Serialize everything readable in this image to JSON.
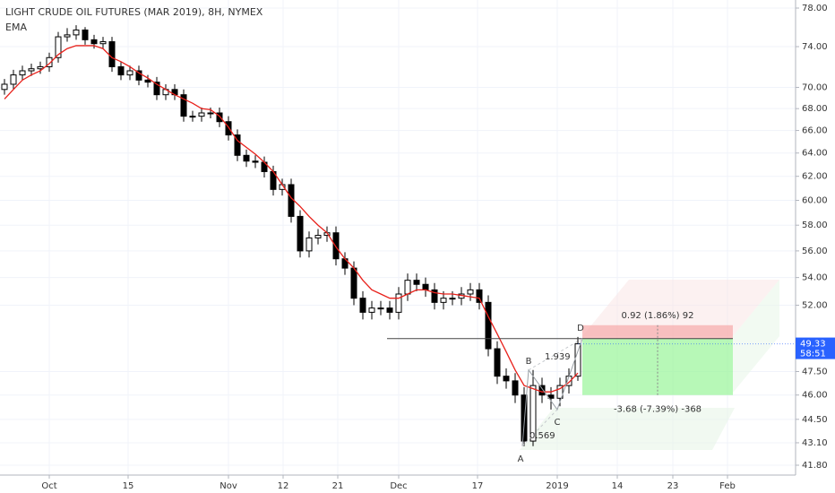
{
  "chart_data": {
    "type": "candlestick",
    "title": "LIGHT CRUDE OIL FUTURES (MAR 2019), 8H, NYMEX",
    "indicator": "EMA",
    "log": true,
    "ylim": [
      41.8,
      78
    ],
    "yticks": [
      {
        "value": 78,
        "label": "78.00"
      },
      {
        "value": 74,
        "label": "74.00"
      },
      {
        "value": 70,
        "label": "70.00"
      },
      {
        "value": 68,
        "label": "68.00"
      },
      {
        "value": 66,
        "label": "66.00"
      },
      {
        "value": 64,
        "label": "64.00"
      },
      {
        "value": 62,
        "label": "62.00"
      },
      {
        "value": 60,
        "label": "60.00"
      },
      {
        "value": 58,
        "label": "58.00"
      },
      {
        "value": 56,
        "label": "56.00"
      },
      {
        "value": 54,
        "label": "54.00"
      },
      {
        "value": 52,
        "label": "52.00"
      },
      {
        "value": 47.5,
        "label": "47.50"
      },
      {
        "value": 46,
        "label": "46.00"
      },
      {
        "value": 44.5,
        "label": "44.50"
      },
      {
        "value": 43.1,
        "label": "43.10"
      },
      {
        "value": 41.8,
        "label": "41.80"
      }
    ],
    "xticks": [
      {
        "value": 5,
        "label": "Oct"
      },
      {
        "value": 13.8,
        "label": "15"
      },
      {
        "value": 25,
        "label": "Nov"
      },
      {
        "value": 31.1,
        "label": "12"
      },
      {
        "value": 37.2,
        "label": "21"
      },
      {
        "value": 44,
        "label": "Dec"
      },
      {
        "value": 52.8,
        "label": "17"
      },
      {
        "value": 61.7,
        "label": "2019"
      },
      {
        "value": 68.4,
        "label": "14"
      },
      {
        "value": 74.6,
        "label": "23"
      },
      {
        "value": 80.7,
        "label": "Feb"
      }
    ],
    "up_color": "#ffffff",
    "down_color": "#000000",
    "ema_color": "#e8201a",
    "open": [
      69.8,
      70.3,
      71.2,
      71.6,
      71.8,
      72.0,
      72.9,
      75.0,
      75.2,
      75.7,
      74.7,
      74.3,
      74.5,
      72.0,
      71.2,
      71.6,
      70.7,
      70.5,
      69.3,
      69.8,
      69.3,
      67.3,
      67.3,
      67.6,
      67.6,
      66.8,
      65.6,
      63.8,
      63.3,
      63.2,
      62.4,
      60.9,
      61.3,
      58.7,
      56.0,
      57.0,
      57.2,
      57.4,
      55.4,
      54.7,
      52.5,
      51.5,
      51.8,
      51.8,
      51.5,
      52.8,
      53.8,
      53.5,
      53.1,
      52.2,
      52.5,
      52.5,
      52.8,
      53.1,
      52.2,
      49.0,
      47.2,
      46.9,
      46.0,
      43.2,
      46.6,
      46.0,
      45.8,
      46.6,
      47.2
    ],
    "high": [
      70.8,
      71.7,
      72.1,
      72.3,
      72.5,
      73.4,
      75.5,
      75.9,
      76.2,
      76.0,
      75.2,
      75.0,
      75.0,
      72.5,
      72.1,
      72.1,
      71.2,
      71.0,
      70.3,
      70.3,
      69.8,
      67.8,
      68.1,
      68.1,
      68.1,
      67.3,
      66.1,
      64.3,
      63.8,
      63.7,
      62.9,
      61.8,
      61.8,
      59.2,
      57.5,
      57.7,
      57.9,
      57.9,
      55.9,
      55.2,
      53.0,
      52.3,
      52.3,
      52.3,
      53.3,
      54.3,
      54.3,
      54.0,
      53.6,
      53.0,
      53.0,
      53.3,
      53.6,
      53.6,
      52.7,
      49.5,
      47.7,
      47.4,
      46.5,
      47.6,
      47.1,
      46.5,
      47.1,
      47.7,
      49.8
    ],
    "low": [
      69.3,
      69.8,
      70.7,
      71.1,
      71.3,
      71.5,
      72.4,
      74.5,
      74.7,
      74.2,
      73.8,
      73.8,
      71.5,
      70.7,
      70.7,
      70.2,
      70.0,
      68.8,
      68.8,
      68.8,
      66.8,
      66.8,
      66.8,
      67.1,
      66.3,
      65.1,
      63.3,
      62.8,
      62.7,
      61.9,
      60.4,
      60.4,
      58.2,
      55.5,
      55.5,
      56.5,
      56.7,
      54.9,
      54.2,
      52.0,
      51.0,
      51.0,
      51.3,
      51.0,
      51.0,
      52.3,
      53.0,
      52.6,
      51.7,
      51.7,
      52.0,
      52.0,
      52.3,
      51.7,
      48.5,
      46.7,
      46.4,
      45.5,
      42.9,
      42.9,
      45.5,
      45.1,
      45.3,
      46.1,
      46.9
    ],
    "close": [
      70.3,
      71.2,
      71.6,
      71.8,
      72.0,
      72.9,
      75.0,
      75.2,
      75.7,
      74.7,
      74.3,
      74.5,
      72.0,
      71.2,
      71.6,
      70.7,
      70.5,
      69.3,
      69.8,
      69.3,
      67.3,
      67.3,
      67.6,
      67.6,
      66.8,
      65.6,
      63.8,
      63.3,
      63.2,
      62.4,
      60.9,
      61.3,
      58.7,
      56.0,
      57.0,
      57.2,
      57.4,
      55.4,
      54.7,
      52.5,
      51.5,
      51.8,
      51.8,
      51.5,
      52.8,
      53.8,
      53.5,
      53.1,
      52.2,
      52.5,
      52.5,
      52.8,
      53.1,
      52.2,
      49.0,
      47.2,
      46.9,
      46.0,
      43.2,
      46.6,
      46.0,
      45.8,
      46.6,
      47.2,
      49.33
    ],
    "ema": [
      68.9,
      69.8,
      70.7,
      71.2,
      71.6,
      72.3,
      73.2,
      73.8,
      74.1,
      74.1,
      74.1,
      73.8,
      72.9,
      72.5,
      72.0,
      71.4,
      70.9,
      70.3,
      69.8,
      69.3,
      68.9,
      68.5,
      68.0,
      67.9,
      67.3,
      66.3,
      65.1,
      64.5,
      63.9,
      63.2,
      62.4,
      61.3,
      60.2,
      59.5,
      58.7,
      58.0,
      57.4,
      56.3,
      55.4,
      54.7,
      53.8,
      53.1,
      52.8,
      52.5,
      52.5,
      52.8,
      53.1,
      53.1,
      52.9,
      52.8,
      52.8,
      52.7,
      52.6,
      52.5,
      51.2,
      50.0,
      48.8,
      47.6,
      46.6,
      46.4,
      46.2,
      46.2,
      46.4,
      46.8,
      47.4
    ],
    "last_price": {
      "value": 49.33,
      "label": "49.33",
      "countdown": "58:51"
    },
    "pattern": {
      "labels": [
        "A",
        "B",
        "C",
        "D"
      ],
      "prices": [
        42.9,
        47.6,
        45.1,
        49.68
      ],
      "ratios": [
        "0.569",
        "1.939"
      ]
    },
    "position": {
      "entry": 49.68,
      "stop": 50.6,
      "target": 46.0,
      "stop_label": "0.92 (1.86%) 92",
      "target_label": "-3.68 (-7.39%) -368"
    }
  }
}
